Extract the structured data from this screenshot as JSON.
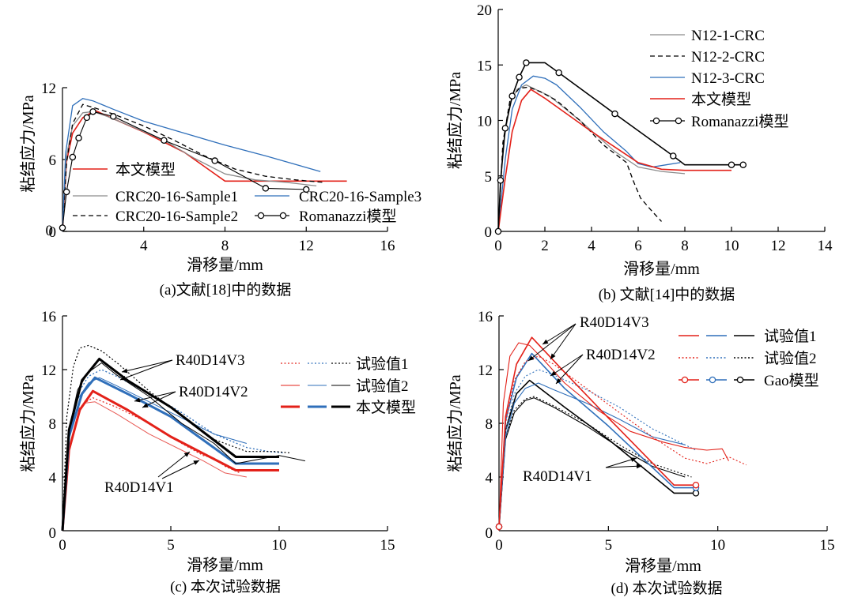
{
  "chart_data": [
    {
      "type": "line",
      "caption": "(a)文献[18]中的数据",
      "xlabel": "滑移量/mm",
      "ylabel": "粘结应力/MPa",
      "xlim": [
        0,
        16
      ],
      "ylim": [
        0,
        12
      ],
      "xticks": [
        4,
        8,
        12,
        16
      ],
      "yticks": [
        0,
        6,
        12
      ],
      "legend_entries": [
        {
          "name": "本文模型",
          "style": "solid",
          "color": "#e32119"
        },
        {
          "name": "CRC20-16-Sample1",
          "style": "solid",
          "color": "#8c8c8c"
        },
        {
          "name": "CRC20-16-Sample2",
          "style": "dashed",
          "color": "#000000"
        },
        {
          "name": "CRC20-16-Sample3",
          "style": "solid",
          "color": "#2f6fba"
        },
        {
          "name": "Romanazzi模型",
          "style": "solid",
          "color": "#000000",
          "marker": "circle"
        }
      ],
      "series": [
        {
          "name": "本文模型",
          "style": "solid",
          "color": "#e32119",
          "width": 1.6,
          "x": [
            0,
            0.2,
            0.5,
            1.0,
            1.6,
            2.5,
            4,
            6,
            8,
            10,
            12,
            14
          ],
          "y": [
            0,
            5.8,
            8.2,
            9.5,
            10.1,
            9.4,
            8.3,
            6.6,
            4.2,
            4.2,
            4.2,
            4.2
          ]
        },
        {
          "name": "CRC20-16-Sample1",
          "style": "solid",
          "color": "#8c8c8c",
          "width": 1.3,
          "x": [
            0,
            0.2,
            0.5,
            1.0,
            1.5,
            2.2,
            3.5,
            5,
            6.5,
            8,
            9.5,
            11,
            12.5
          ],
          "y": [
            0,
            6.3,
            8.8,
            9.9,
            10.0,
            9.6,
            8.7,
            7.6,
            6.1,
            4.8,
            4.3,
            4.1,
            3.8
          ]
        },
        {
          "name": "CRC20-16-Sample2",
          "style": "dashed",
          "color": "#000000",
          "width": 1.3,
          "x": [
            0,
            0.2,
            0.5,
            1.0,
            1.6,
            2.5,
            4,
            5.5,
            7,
            8.5,
            10,
            11.5,
            12.8
          ],
          "y": [
            0,
            5.7,
            9.0,
            10.6,
            10.3,
            9.8,
            8.8,
            7.6,
            6.3,
            5.2,
            4.6,
            4.3,
            4.1
          ]
        },
        {
          "name": "CRC20-16-Sample3",
          "style": "solid",
          "color": "#2f6fba",
          "width": 1.3,
          "x": [
            0,
            0.15,
            0.5,
            1.0,
            1.5,
            2.5,
            4,
            6,
            8,
            10,
            12.7
          ],
          "y": [
            0,
            6.5,
            10.5,
            11.1,
            10.9,
            10.2,
            9.2,
            8.2,
            7.2,
            6.3,
            5.0
          ]
        },
        {
          "name": "Romanazzi模型",
          "style": "solid",
          "color": "#000000",
          "width": 1.1,
          "marker": "circle",
          "x": [
            0,
            0.2,
            0.5,
            0.8,
            1.2,
            1.5,
            2.5,
            5,
            7.5,
            10,
            12
          ],
          "y": [
            0.3,
            3.3,
            6.2,
            7.8,
            9.5,
            10.0,
            9.6,
            7.6,
            5.9,
            3.6,
            3.5
          ]
        }
      ]
    },
    {
      "type": "line",
      "caption": "(b) 文献[14]中的数据",
      "xlabel": "滑移量/mm",
      "ylabel": "粘结应力/MPa",
      "xlim": [
        0,
        14
      ],
      "ylim": [
        0,
        20
      ],
      "xticks": [
        0,
        2,
        4,
        6,
        8,
        10,
        12,
        14
      ],
      "yticks": [
        5,
        10,
        15,
        20
      ],
      "legend_entries": [
        {
          "name": "N12-1-CRC",
          "style": "solid",
          "color": "#8c8c8c"
        },
        {
          "name": "N12-2-CRC",
          "style": "dashed",
          "color": "#000000"
        },
        {
          "name": "N12-3-CRC",
          "style": "solid",
          "color": "#2f6fba"
        },
        {
          "name": "本文模型",
          "style": "solid",
          "color": "#e32119"
        },
        {
          "name": "Romanazzi模型",
          "style": "solid",
          "color": "#000000",
          "marker": "circle"
        }
      ],
      "series": [
        {
          "name": "N12-1-CRC",
          "style": "solid",
          "color": "#8c8c8c",
          "width": 1.3,
          "x": [
            0,
            0.2,
            0.5,
            0.8,
            1.2,
            1.6,
            2.2,
            3.5,
            5,
            6,
            7,
            8
          ],
          "y": [
            0,
            7.5,
            11.5,
            12.8,
            13.2,
            12.8,
            12.2,
            10.0,
            7.2,
            5.8,
            5.4,
            5.2
          ]
        },
        {
          "name": "N12-2-CRC",
          "style": "dashed",
          "color": "#000000",
          "width": 1.3,
          "x": [
            0,
            0.2,
            0.5,
            0.9,
            1.3,
            1.8,
            2.5,
            3.5,
            4.5,
            5.5,
            5.8,
            6.1,
            6.6,
            7.0
          ],
          "y": [
            0,
            8.0,
            11.8,
            12.9,
            13.0,
            12.6,
            11.8,
            10.0,
            7.8,
            6.2,
            4.5,
            3.0,
            1.8,
            0.9
          ]
        },
        {
          "name": "N12-3-CRC",
          "style": "solid",
          "color": "#2f6fba",
          "width": 1.3,
          "x": [
            0,
            0.3,
            0.6,
            1.0,
            1.5,
            2.0,
            2.5,
            3.5,
            4.5,
            5.5,
            6.0,
            6.6,
            7.2,
            7.8
          ],
          "y": [
            0,
            6.5,
            11.0,
            13.2,
            14.0,
            13.8,
            13.2,
            11.2,
            9.0,
            7.2,
            6.1,
            5.8,
            6.0,
            6.2
          ]
        },
        {
          "name": "本文模型",
          "style": "solid",
          "color": "#e32119",
          "width": 1.6,
          "x": [
            0,
            0.3,
            0.6,
            1.0,
            1.4,
            2.0,
            3.0,
            4.0,
            5.0,
            6.0,
            7.0,
            8.0,
            10.0
          ],
          "y": [
            0,
            4.8,
            9.0,
            11.8,
            12.8,
            12.0,
            10.5,
            9.0,
            7.6,
            6.2,
            5.6,
            5.5,
            5.5
          ]
        },
        {
          "name": "Romanazzi模型",
          "style": "solid",
          "color": "#000000",
          "width": 1.6,
          "marker": "circle",
          "x": [
            0,
            0.1,
            0.3,
            0.6,
            0.9,
            1.2,
            1.5,
            2.0,
            2.6,
            5.0,
            7.5,
            8.0,
            10.0,
            10.5
          ],
          "y": [
            0,
            4.6,
            9.3,
            12.2,
            13.9,
            15.2,
            15.2,
            15.2,
            14.3,
            10.6,
            6.8,
            6.0,
            6.0,
            6.0
          ],
          "marker_x": [
            0,
            0.1,
            0.3,
            0.6,
            0.9,
            1.2,
            2.6,
            5.0,
            7.5,
            10.0,
            10.5
          ]
        }
      ]
    },
    {
      "type": "line",
      "caption": "(c) 本次试验数据",
      "xlabel": "滑移量/mm",
      "ylabel": "粘结应力/MPa",
      "xlim": [
        0,
        15
      ],
      "ylim": [
        0,
        16
      ],
      "xticks": [
        0,
        5,
        10,
        15
      ],
      "yticks": [
        4,
        8,
        12,
        16
      ],
      "legend_entries": [
        "试验值1",
        "试验值2",
        "本文模型"
      ],
      "annotations": [
        "R40D14V3",
        "R40D14V2",
        "R40D14V1"
      ],
      "series": [
        {
          "name": "R40D14V1 试验值1",
          "style": "dotted",
          "color": "#e32119",
          "width": 1.2,
          "x": [
            0,
            0.3,
            0.6,
            1.0,
            1.4,
            2.5,
            4,
            5.5,
            6.5,
            7.0,
            7.5,
            8.2
          ],
          "y": [
            0,
            7.2,
            8.8,
            9.5,
            9.9,
            9.2,
            8.0,
            6.5,
            5.6,
            5.4,
            4.8,
            4.3
          ]
        },
        {
          "name": "R40D14V1 试验值2",
          "style": "solid",
          "color": "#e85a55",
          "width": 1.0,
          "x": [
            0,
            0.3,
            0.6,
            1.0,
            1.5,
            2.5,
            4,
            5.5,
            6.5,
            7.5,
            8.5
          ],
          "y": [
            0,
            7.0,
            8.7,
            9.5,
            9.6,
            8.7,
            7.2,
            6.0,
            5.2,
            4.3,
            4.0
          ]
        },
        {
          "name": "R40D14V1 本文模型",
          "style": "solid",
          "color": "#e32119",
          "width": 3.0,
          "x": [
            0,
            0.3,
            0.8,
            1.4,
            3,
            5,
            8,
            10
          ],
          "y": [
            0,
            6.0,
            9.0,
            10.4,
            9.0,
            7.0,
            4.5,
            4.5
          ]
        },
        {
          "name": "R40D14V2 试验值1",
          "style": "dotted",
          "color": "#2f6fba",
          "width": 1.3,
          "x": [
            0,
            0.3,
            0.7,
            1.2,
            1.8,
            2.5,
            4,
            5.5,
            7,
            8.5,
            9.5,
            10.2
          ],
          "y": [
            0,
            7.5,
            10.2,
            11.5,
            12.0,
            11.5,
            10.2,
            8.8,
            7.2,
            6.2,
            5.9,
            5.8
          ]
        },
        {
          "name": "R40D14V2 试验值2",
          "style": "solid",
          "color": "#2f6fba",
          "width": 1.0,
          "x": [
            0,
            0.3,
            0.7,
            1.2,
            1.7,
            2.5,
            4,
            5.5,
            7,
            8.5
          ],
          "y": [
            0,
            7.0,
            9.8,
            11.0,
            11.4,
            10.8,
            9.6,
            8.4,
            7.2,
            6.5
          ]
        },
        {
          "name": "R40D14V2 本文模型",
          "style": "solid",
          "color": "#2f6fba",
          "width": 3.0,
          "x": [
            0,
            0.3,
            0.9,
            1.5,
            3,
            5,
            8,
            10
          ],
          "y": [
            0,
            7.0,
            10.2,
            11.4,
            10.2,
            8.5,
            5.0,
            5.0
          ]
        },
        {
          "name": "R40D14V3 试验值1",
          "style": "dotted",
          "color": "#000000",
          "width": 1.2,
          "x": [
            0,
            0.2,
            0.5,
            0.8,
            1.2,
            1.8,
            2.6,
            4,
            5.5,
            7,
            8.5,
            9.8,
            10.5
          ],
          "y": [
            0,
            8.5,
            12.2,
            13.6,
            13.8,
            13.4,
            12.4,
            10.4,
            8.6,
            6.8,
            5.9,
            5.9,
            5.8
          ]
        },
        {
          "name": "R40D14V3 试验值2",
          "style": "solid",
          "color": "#000000",
          "width": 1.0,
          "x": [
            0,
            0.3,
            0.7,
            1.2,
            1.8,
            2.5,
            4,
            5.5,
            7,
            8,
            9,
            10,
            11.2
          ],
          "y": [
            0,
            7.5,
            10.5,
            11.8,
            12.5,
            11.6,
            10.0,
            8.0,
            6.5,
            5.0,
            5.3,
            5.6,
            5.2
          ]
        },
        {
          "name": "R40D14V3 本文模型",
          "style": "solid",
          "color": "#000000",
          "width": 3.0,
          "x": [
            0,
            0.3,
            0.9,
            1.7,
            3,
            5,
            8,
            10
          ],
          "y": [
            0,
            7.5,
            11.2,
            12.8,
            11.2,
            9.2,
            5.5,
            5.5
          ]
        }
      ]
    },
    {
      "type": "line",
      "caption": "(d) 本次试验数据",
      "xlabel": "滑移量/mm",
      "ylabel": "粘结应力/MPa",
      "xlim": [
        0,
        15
      ],
      "ylim": [
        0,
        16
      ],
      "xticks": [
        0,
        5,
        10,
        15
      ],
      "yticks": [
        4,
        8,
        12,
        16
      ],
      "legend_entries": [
        "试验值1",
        "试验值2",
        "Gao模型"
      ],
      "annotations": [
        "R40D14V3",
        "R40D14V2",
        "R40D14V1"
      ],
      "series": [
        {
          "name": "R40D14V1 试验值1",
          "style": "solid",
          "color": "#000000",
          "width": 1.1,
          "x": [
            0,
            0.3,
            0.7,
            1.2,
            1.6,
            2.5,
            4,
            5.5,
            7,
            8.5
          ],
          "y": [
            0,
            6.8,
            8.8,
            9.7,
            9.9,
            9.2,
            7.8,
            6.2,
            4.8,
            4.0
          ]
        },
        {
          "name": "R40D14V1 试验值2",
          "style": "dotted",
          "color": "#000000",
          "width": 1.1,
          "x": [
            0,
            0.3,
            0.7,
            1.2,
            1.6,
            2.5,
            4,
            5.5,
            7,
            8.8
          ],
          "y": [
            0,
            7.0,
            9.0,
            9.8,
            10.0,
            9.3,
            8.0,
            6.4,
            5.0,
            4.0
          ]
        },
        {
          "name": "R40D14V1 Gao模型",
          "style": "solid",
          "color": "#000000",
          "width": 1.6,
          "marker": "circle",
          "x": [
            0,
            0.3,
            0.8,
            1.4,
            3,
            5,
            8,
            9
          ],
          "y": [
            0.3,
            7.5,
            10.2,
            11.2,
            9.2,
            6.8,
            2.8,
            2.8
          ],
          "marker_x": [
            0,
            9
          ]
        },
        {
          "name": "R40D14V2 试验值1",
          "style": "solid",
          "color": "#2f6fba",
          "width": 1.1,
          "x": [
            0,
            0.3,
            0.7,
            1.2,
            1.8,
            2.5,
            4,
            5.5,
            7,
            8.5
          ],
          "y": [
            0,
            7.0,
            9.5,
            10.6,
            11.0,
            10.5,
            9.5,
            8.3,
            7.0,
            6.4
          ]
        },
        {
          "name": "R40D14V2 试验值2",
          "style": "dotted",
          "color": "#2f6fba",
          "width": 1.1,
          "x": [
            0,
            0.3,
            0.7,
            1.2,
            1.8,
            2.5,
            4,
            5.5,
            7,
            9
          ],
          "y": [
            0,
            7.5,
            10.2,
            11.5,
            12.0,
            11.6,
            10.5,
            9.2,
            7.6,
            6.0
          ]
        },
        {
          "name": "R40D14V2 Gao模型",
          "style": "solid",
          "color": "#2f6fba",
          "width": 1.6,
          "marker": "circle",
          "x": [
            0,
            0.3,
            0.8,
            1.5,
            3,
            5,
            8,
            9
          ],
          "y": [
            0.3,
            8.2,
            11.4,
            13.2,
            10.6,
            7.8,
            3.2,
            3.2
          ],
          "marker_x": [
            0,
            9
          ]
        },
        {
          "name": "R40D14V3 试验值1",
          "style": "solid",
          "color": "#e32119",
          "width": 1.1,
          "x": [
            0,
            0.2,
            0.5,
            0.9,
            1.4,
            2.0,
            3.0,
            4.5,
            6,
            7.5,
            8.5,
            9.5,
            10.2,
            10.5
          ],
          "y": [
            0,
            9.5,
            13.0,
            14.0,
            13.8,
            12.8,
            11.0,
            9.0,
            7.4,
            6.6,
            6.2,
            6.0,
            6.1,
            5.2
          ]
        },
        {
          "name": "R40D14V3 试验值2",
          "style": "dotted",
          "color": "#e32119",
          "width": 1.1,
          "x": [
            0,
            0.3,
            0.7,
            1.2,
            1.8,
            2.5,
            4,
            5.5,
            7,
            8.5,
            9.5,
            10.5,
            11.3
          ],
          "y": [
            0,
            8.0,
            11.2,
            12.6,
            13.0,
            12.4,
            10.6,
            8.8,
            7.0,
            5.4,
            5.0,
            5.5,
            4.9
          ]
        },
        {
          "name": "R40D14V3 Gao模型",
          "style": "solid",
          "color": "#e32119",
          "width": 1.6,
          "marker": "circle",
          "x": [
            0,
            0.3,
            0.8,
            1.5,
            3,
            5,
            8,
            9
          ],
          "y": [
            0.3,
            8.5,
            12.4,
            14.4,
            11.8,
            8.4,
            3.4,
            3.4
          ],
          "marker_x": [
            0,
            9
          ]
        }
      ]
    }
  ]
}
